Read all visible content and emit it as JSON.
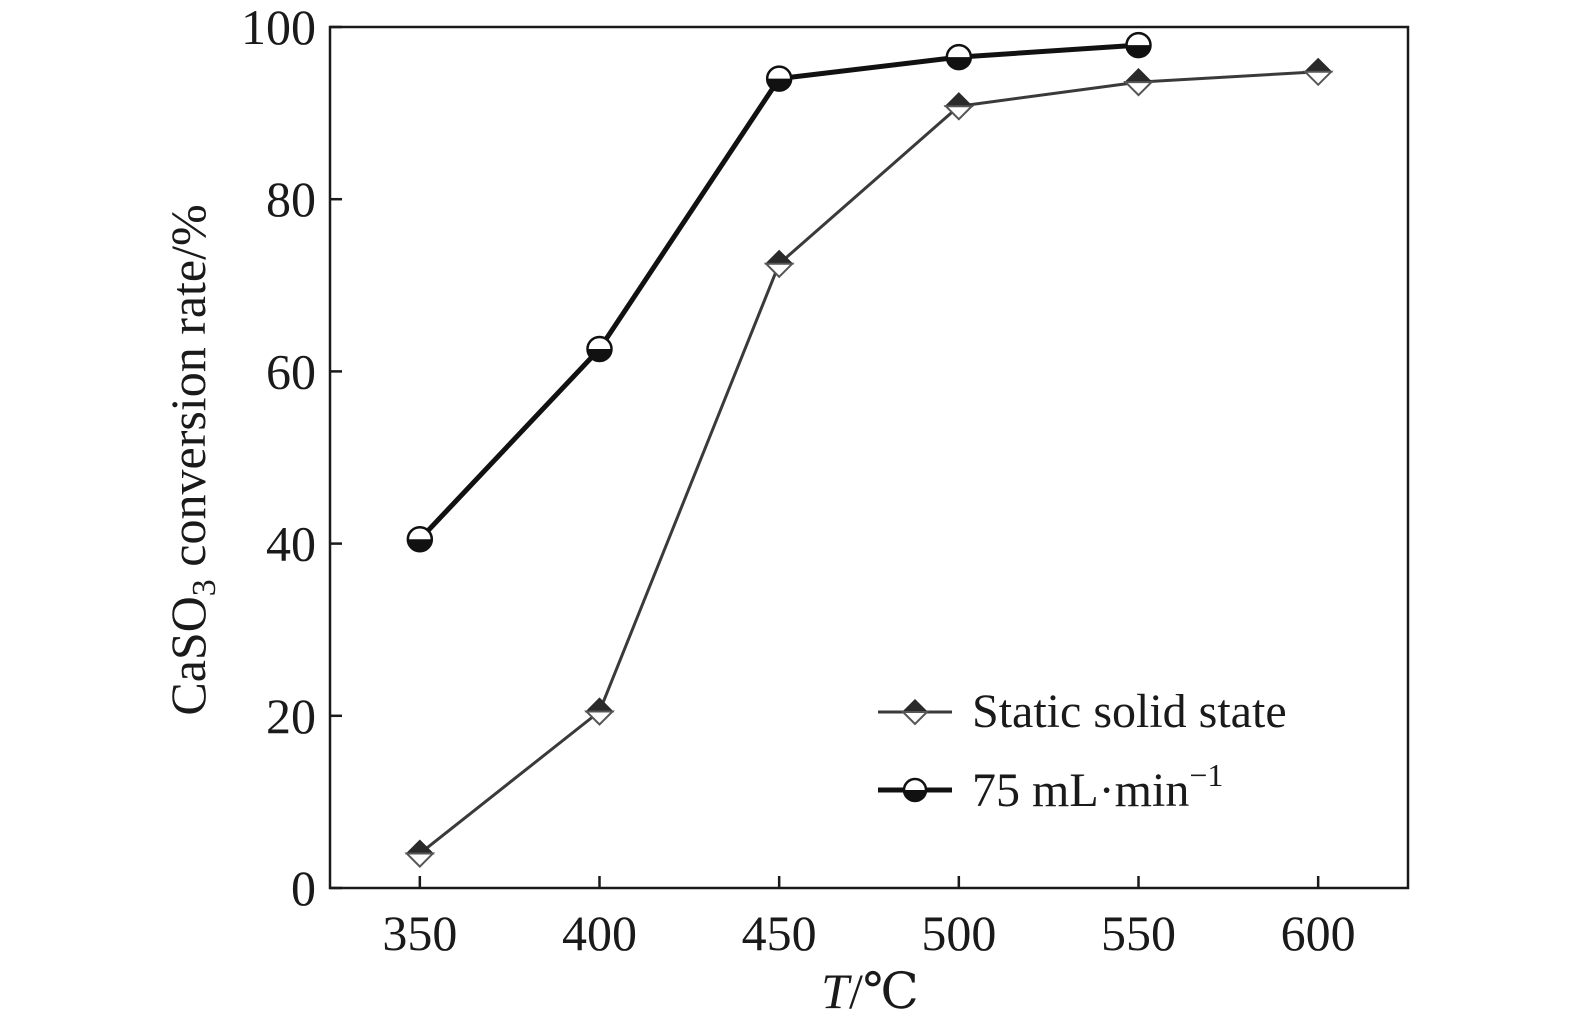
{
  "chart_data": {
    "type": "line",
    "x": [
      350,
      400,
      450,
      500,
      550,
      600
    ],
    "x_ticks": [
      "350",
      "400",
      "450",
      "500",
      "550",
      "600"
    ],
    "y_ticks": [
      "0",
      "20",
      "40",
      "60",
      "80",
      "100"
    ],
    "xlim": [
      325,
      625
    ],
    "ylim": [
      0,
      100
    ],
    "xlabel": {
      "var": "T",
      "unit": "/℃"
    },
    "ylabel": {
      "pre": "CaSO",
      "sub": "3",
      "post": " conversion rate/%"
    },
    "grid": false,
    "legend_position": "bottom-right",
    "series": [
      {
        "name": "Static solid state",
        "marker": "half-filled-diamond",
        "color": "#3a3a3a",
        "x": [
          350,
          400,
          450,
          500,
          550,
          600
        ],
        "values": [
          4,
          20.5,
          72.5,
          90.8,
          93.6,
          94.8
        ]
      },
      {
        "name_main": "75 mL·min",
        "name_sup": "−1",
        "marker": "half-filled-circle",
        "color": "#111111",
        "x": [
          350,
          400,
          450,
          500,
          550
        ],
        "values": [
          40.5,
          62.6,
          94,
          96.5,
          97.9
        ]
      }
    ]
  }
}
